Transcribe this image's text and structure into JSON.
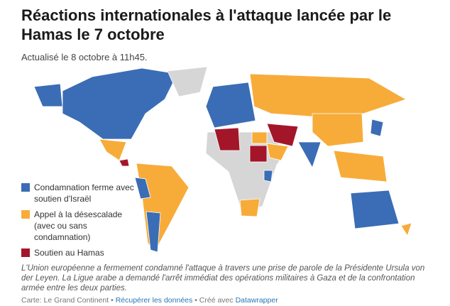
{
  "header": {
    "title": "Réactions internationales à l'attaque lancée par le Hamas le 7 octobre",
    "subtitle": "Actualisé le 8 octobre à 11h45."
  },
  "legend": {
    "items": [
      {
        "label": "Condamnation ferme avec soutien d'Israël",
        "color": "#3a6db5"
      },
      {
        "label": "Appel à la désescalade (avec ou sans condamnation)",
        "color": "#f7ac3a"
      },
      {
        "label": "Soutien au Hamas",
        "color": "#a3162a"
      }
    ],
    "no_data_color": "#d6d6d6"
  },
  "note": "L'Union européenne a fermement condamné l'attaque à travers une prise de parole de la Présidente Ursula von der Leyen. La Ligue arabe a demandé l'arrêt immédiat des opérations militaires à Gaza et de la confrontation armée entre les deux parties.",
  "footer": {
    "source": "Carte: Le Grand Continent",
    "separator": "•",
    "download": "Récupérer les données",
    "created": "Créé avec",
    "tool": "Datawrapper"
  }
}
